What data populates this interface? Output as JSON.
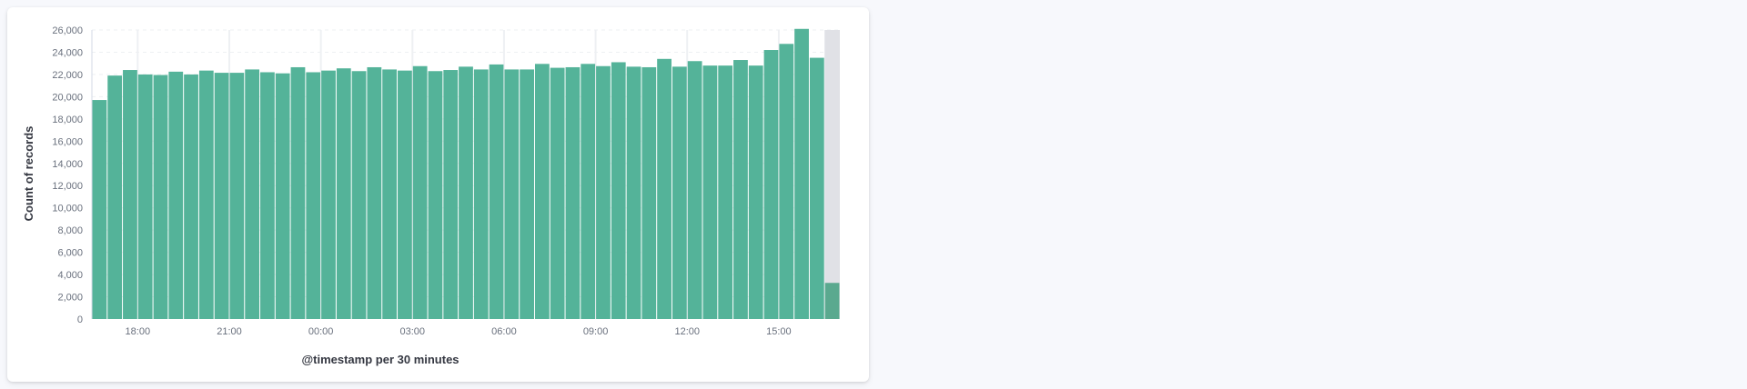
{
  "colors": {
    "bar": "#54b399",
    "partial_bar": "#5aa98f",
    "partial_region": "#e0e1e6",
    "grid": "#eef0f3",
    "background": "#ffffff"
  },
  "chart_data": {
    "type": "bar",
    "title": "",
    "xlabel": "@timestamp per 30 minutes",
    "ylabel": "Count of records",
    "ylim": [
      0,
      26000
    ],
    "y_ticks": [
      0,
      2000,
      4000,
      6000,
      8000,
      10000,
      12000,
      14000,
      16000,
      18000,
      20000,
      22000,
      24000,
      26000
    ],
    "y_tick_labels": [
      "0",
      "2,000",
      "4,000",
      "6,000",
      "8,000",
      "10,000",
      "12,000",
      "14,000",
      "16,000",
      "18,000",
      "20,000",
      "22,000",
      "24,000",
      "26,000"
    ],
    "x_tick_labels": [
      "18:00",
      "21:00",
      "00:00",
      "03:00",
      "06:00",
      "09:00",
      "12:00",
      "15:00"
    ],
    "x_tick_bucket_index": [
      3,
      9,
      15,
      21,
      27,
      33,
      39,
      45
    ],
    "grid": true,
    "partial_bucket_index": 48,
    "series": [
      {
        "values": [
          19700,
          21900,
          22400,
          22000,
          21950,
          22250,
          22000,
          22350,
          22150,
          22150,
          22450,
          22200,
          22100,
          22650,
          22200,
          22350,
          22550,
          22300,
          22650,
          22450,
          22350,
          22750,
          22300,
          22400,
          22700,
          22450,
          22900,
          22450,
          22450,
          22950,
          22600,
          22650,
          22950,
          22750,
          23100,
          22700,
          22650,
          23400,
          22700,
          23200,
          22800,
          22800,
          23300,
          22800,
          24200,
          24750,
          26100,
          23500,
          3250
        ]
      }
    ]
  }
}
